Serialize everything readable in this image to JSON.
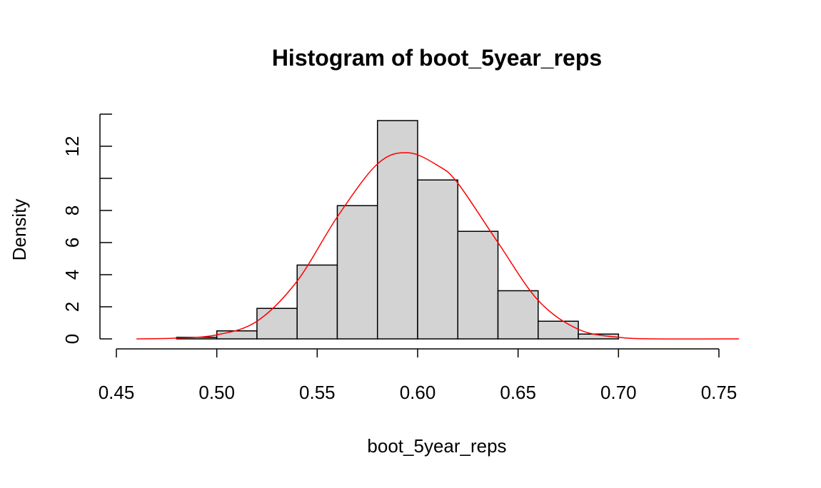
{
  "chart_data": {
    "type": "bar",
    "title": "Histogram of boot_5year_reps",
    "xlabel": "boot_5year_reps",
    "ylabel": "Density",
    "xlim": [
      0.45,
      0.75
    ],
    "ylim": [
      0,
      14
    ],
    "x_ticks": [
      "0.45",
      "0.50",
      "0.55",
      "0.60",
      "0.65",
      "0.70",
      "0.75"
    ],
    "y_ticks": [
      "0",
      "2",
      "4",
      "6",
      "8",
      "12"
    ],
    "bins": [
      {
        "from": 0.48,
        "to": 0.5,
        "density": 0.1
      },
      {
        "from": 0.5,
        "to": 0.52,
        "density": 0.5
      },
      {
        "from": 0.52,
        "to": 0.54,
        "density": 1.9
      },
      {
        "from": 0.54,
        "to": 0.56,
        "density": 4.6
      },
      {
        "from": 0.56,
        "to": 0.58,
        "density": 8.3
      },
      {
        "from": 0.58,
        "to": 0.6,
        "density": 13.6
      },
      {
        "from": 0.6,
        "to": 0.62,
        "density": 9.9
      },
      {
        "from": 0.62,
        "to": 0.64,
        "density": 6.7
      },
      {
        "from": 0.64,
        "to": 0.66,
        "density": 3.0
      },
      {
        "from": 0.66,
        "to": 0.68,
        "density": 1.1
      },
      {
        "from": 0.68,
        "to": 0.7,
        "density": 0.3
      }
    ],
    "density_curve": {
      "color": "#ff0000",
      "x": [
        0.46,
        0.48,
        0.5,
        0.52,
        0.54,
        0.56,
        0.58,
        0.595,
        0.61,
        0.62,
        0.64,
        0.66,
        0.68,
        0.7,
        0.72,
        0.76
      ],
      "y": [
        0.0,
        0.05,
        0.25,
        1.1,
        3.6,
        7.6,
        10.9,
        11.6,
        10.8,
        9.7,
        6.0,
        2.4,
        0.6,
        0.1,
        0.0,
        0.0
      ]
    },
    "bar_fill": "#d3d3d3",
    "bar_stroke": "#000000",
    "grid": false
  }
}
